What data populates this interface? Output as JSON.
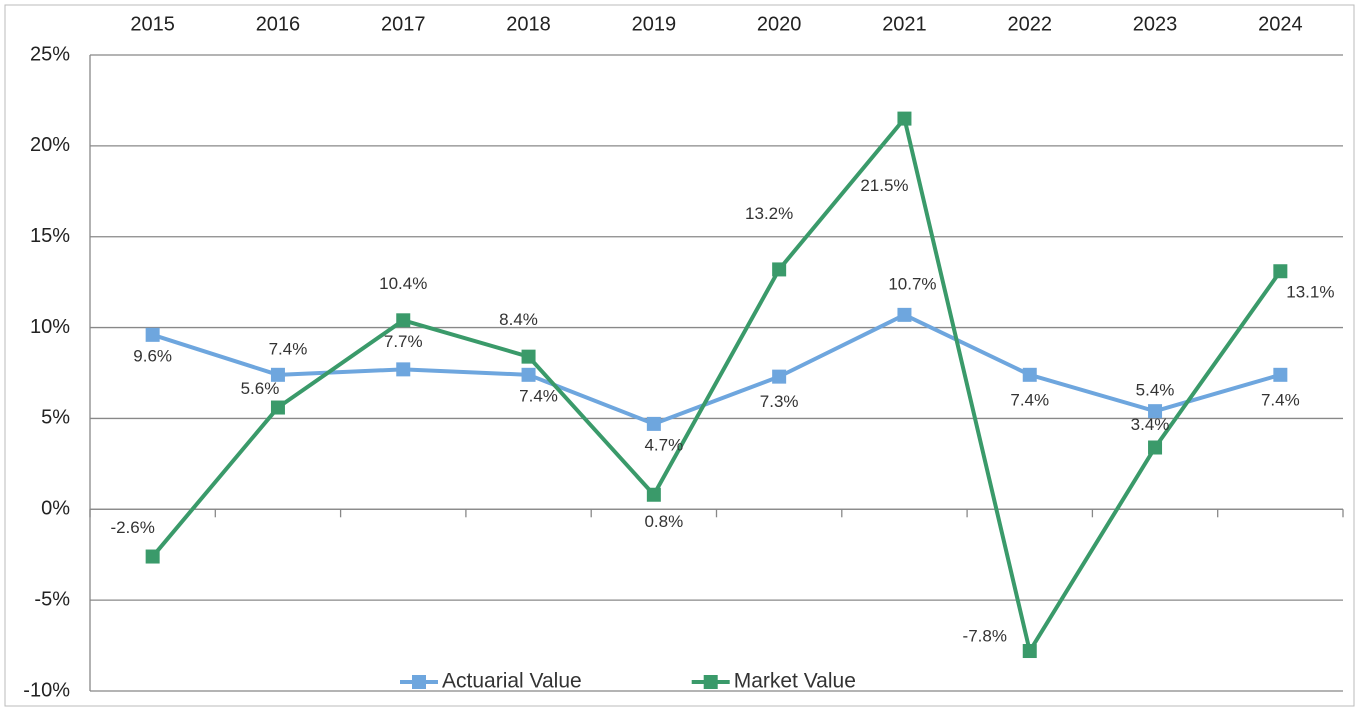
{
  "chart_data": {
    "type": "line",
    "categories": [
      "2015",
      "2016",
      "2017",
      "2018",
      "2019",
      "2020",
      "2021",
      "2022",
      "2023",
      "2024"
    ],
    "series": [
      {
        "name": "Actuarial Value",
        "color": "#6ea6de",
        "values": [
          9.6,
          7.4,
          7.7,
          7.4,
          4.7,
          7.3,
          10.7,
          7.4,
          5.4,
          7.4
        ],
        "value_labels": [
          "9.6%",
          "7.4%",
          "7.7%",
          "7.4%",
          "4.7%",
          "7.3%",
          "10.7%",
          "7.4%",
          "5.4%",
          "7.4%"
        ]
      },
      {
        "name": "Market Value",
        "color": "#3a9a6a",
        "values": [
          -2.6,
          5.6,
          10.4,
          8.4,
          0.8,
          13.2,
          21.5,
          -7.8,
          3.4,
          13.1
        ],
        "value_labels": [
          "-2.6%",
          "5.6%",
          "10.4%",
          "8.4%",
          "0.8%",
          "13.2%",
          "21.5%",
          "-7.8%",
          "3.4%",
          "13.1%"
        ]
      }
    ],
    "ylim": [
      -10,
      25
    ],
    "yticks": [
      {
        "value": -10,
        "label": "-10%"
      },
      {
        "value": -5,
        "label": "-5%"
      },
      {
        "value": 0,
        "label": "0%"
      },
      {
        "value": 5,
        "label": "5%"
      },
      {
        "value": 10,
        "label": "10%"
      },
      {
        "value": 15,
        "label": "15%"
      },
      {
        "value": 20,
        "label": "20%"
      },
      {
        "value": 25,
        "label": "25%"
      }
    ],
    "grid": true,
    "legend": "bottom"
  }
}
